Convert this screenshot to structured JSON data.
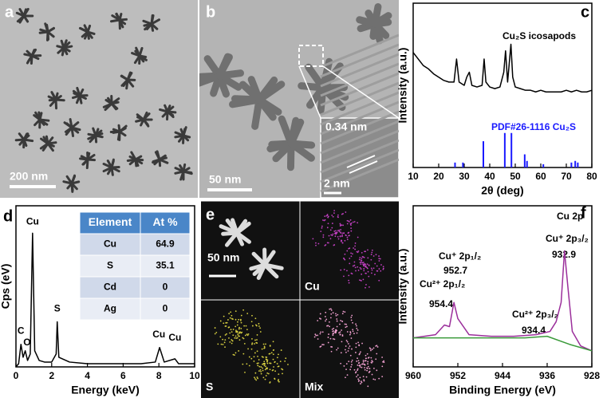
{
  "panel_a": {
    "letter": "a",
    "scale_bar": "200 nm"
  },
  "panel_b": {
    "letter": "b",
    "scale_bar": "50 nm",
    "inset_lattice": "0.34 nm",
    "inset_scale_bar": "2 nm"
  },
  "panel_c": {
    "letter": "c",
    "type": "line",
    "xlabel": "2θ (deg)",
    "ylabel": "Intensity (a.u.)",
    "xlim": [
      10,
      80
    ],
    "ylim": [
      0,
      100
    ],
    "xticks": [
      10,
      20,
      30,
      40,
      50,
      60,
      70,
      80
    ],
    "series": [
      {
        "name": "Cu₂S icosapods",
        "color": "#000000",
        "x": [
          10,
          12,
          14,
          16,
          18,
          20,
          22,
          24,
          26,
          27,
          28,
          30,
          31,
          32,
          33,
          35,
          37,
          37.8,
          38.5,
          40,
          42,
          44,
          45.5,
          46.2,
          47,
          48.3,
          49,
          50,
          52,
          54,
          56,
          58,
          60,
          62,
          64,
          66,
          68,
          70,
          72,
          74,
          76,
          78,
          80
        ],
        "values": [
          70,
          66,
          62,
          60,
          57,
          55,
          53,
          52,
          52,
          66,
          52,
          50,
          55,
          58,
          50,
          49,
          50,
          66,
          52,
          49,
          48,
          49,
          58,
          71,
          52,
          75,
          55,
          49,
          48,
          47,
          47,
          46,
          47,
          46,
          46,
          46,
          46,
          47,
          46,
          47,
          46,
          46,
          47
        ]
      }
    ],
    "reference": {
      "name": "PDF#26-1116 Cu₂S",
      "color": "#1a1aff",
      "x": [
        26.4,
        29.5,
        37.5,
        45.9,
        48.5,
        53.7,
        54.6,
        61,
        72,
        73.5,
        74.5
      ],
      "values": [
        3,
        3,
        16,
        21,
        21,
        8,
        4,
        2,
        3,
        4,
        3
      ]
    }
  },
  "panel_d": {
    "letter": "d",
    "type": "line",
    "xlabel": "Energy (keV)",
    "ylabel": "Cps (eV)",
    "xlim": [
      0,
      10
    ],
    "ylim": [
      0,
      100
    ],
    "xticks": [
      0,
      2,
      4,
      6,
      8,
      10
    ],
    "series": [
      {
        "color": "#000000",
        "x": [
          0,
          0.15,
          0.28,
          0.4,
          0.52,
          0.65,
          0.8,
          0.93,
          1.05,
          1.3,
          1.6,
          2.0,
          2.25,
          2.31,
          2.4,
          3,
          4,
          5,
          6,
          7,
          7.8,
          8.04,
          8.3,
          8.9,
          9.1,
          10
        ],
        "values": [
          0,
          2,
          14,
          6,
          10,
          4,
          8,
          83,
          10,
          4,
          3,
          3,
          8,
          28,
          6,
          3,
          2,
          2,
          2,
          2,
          3,
          12,
          3,
          5,
          2,
          2
        ]
      }
    ],
    "peak_labels": [
      "C",
      "O",
      "Cu",
      "S",
      "Cu",
      "Cu"
    ],
    "table": {
      "header": [
        "Element",
        "At %"
      ],
      "rows": [
        [
          "Cu",
          "64.9"
        ],
        [
          "S",
          "35.1"
        ],
        [
          "Cd",
          "0"
        ],
        [
          "Ag",
          "0"
        ]
      ]
    }
  },
  "panel_e": {
    "letter": "e",
    "scale_bar": "50 nm",
    "maps": [
      "Cu",
      "S",
      "Mix"
    ]
  },
  "panel_f": {
    "letter": "f",
    "type": "line",
    "title": "Cu 2p",
    "xlabel": "Binding Energy (eV)",
    "ylabel": "Intensity (a.u.)",
    "xlim": [
      960,
      928
    ],
    "ylim": [
      0,
      100
    ],
    "xticks": [
      960,
      952,
      944,
      936,
      928
    ],
    "series": [
      {
        "color": "#9b2f9b",
        "x": [
          960,
          956,
          954.4,
          953.5,
          952.7,
          952,
          950,
          946,
          942,
          938,
          935.5,
          934.4,
          933.5,
          932.9,
          932.3,
          931.5,
          930,
          928
        ],
        "values": [
          18,
          20,
          26,
          25,
          40,
          30,
          20,
          19,
          19,
          20,
          22,
          28,
          40,
          72,
          50,
          22,
          13,
          10
        ]
      },
      {
        "color": "#3a9a3a",
        "x": [
          960,
          950,
          940,
          936,
          932,
          928
        ],
        "values": [
          18,
          18,
          18,
          19,
          14,
          10
        ]
      }
    ],
    "peaks": [
      {
        "label": "Cu⁺ 2p₁/₂",
        "value": "952.7"
      },
      {
        "label": "Cu²⁺ 2p₁/₂",
        "value": "954.4"
      },
      {
        "label": "Cu⁺ 2p₃/₂",
        "value": "932.9"
      },
      {
        "label": "Cu²⁺ 2p₃/₂",
        "value": "934.4"
      }
    ]
  }
}
